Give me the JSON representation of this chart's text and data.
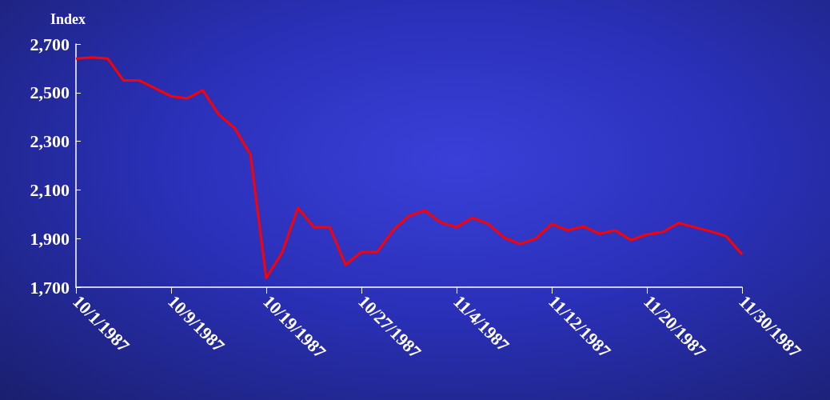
{
  "chart_data": {
    "type": "line",
    "ylabel": "Index",
    "categories": [
      "10/1/1987",
      null,
      null,
      null,
      null,
      null,
      "10/9/1987",
      null,
      null,
      null,
      null,
      null,
      "10/19/1987",
      null,
      null,
      null,
      null,
      null,
      "10/27/1987",
      null,
      null,
      null,
      null,
      null,
      "11/4/1987",
      null,
      null,
      null,
      null,
      null,
      "11/12/1987",
      null,
      null,
      null,
      null,
      null,
      "11/20/1987",
      null,
      null,
      null,
      null,
      null,
      "11/30/1987"
    ],
    "series": [
      {
        "color": "#ff0000",
        "values": [
          2640,
          2645,
          2640,
          2550,
          2550,
          2518,
          2485,
          2476,
          2510,
          2410,
          2355,
          2246,
          1738,
          1842,
          2026,
          1947,
          1947,
          1792,
          1845,
          1845,
          1934,
          1993,
          2016,
          1966,
          1947,
          1986,
          1960,
          1904,
          1878,
          1900,
          1960,
          1934,
          1950,
          1920,
          1934,
          1894,
          1917,
          1927,
          1964,
          1947,
          1930,
          1910,
          1835
        ]
      }
    ],
    "ylim": [
      1700,
      2700
    ],
    "yticks": [
      {
        "value": 1700,
        "label": "1,700"
      },
      {
        "value": 1900,
        "label": "1,900"
      },
      {
        "value": 2100,
        "label": "2,100"
      },
      {
        "value": 2300,
        "label": "2,300"
      },
      {
        "value": 2500,
        "label": "2,500"
      },
      {
        "value": 2700,
        "label": "2,700"
      }
    ],
    "grid": false,
    "marker": "none",
    "line_style": "solid"
  }
}
